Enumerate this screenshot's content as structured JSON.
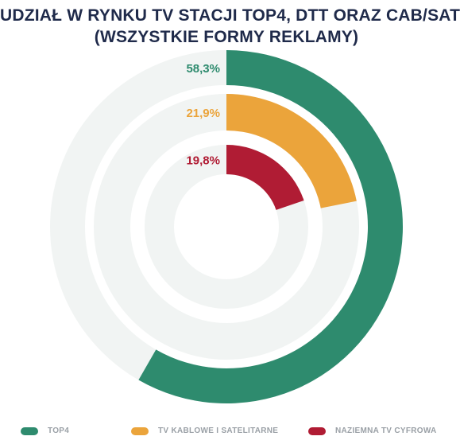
{
  "title_line1": "UDZIAŁ W RYNKU TV STACJI TOP4, DTT ORAZ CAB/SAT",
  "title_line2": "(WSZYSTKIE FORMY REKLAMY)",
  "chart_data": {
    "type": "pie",
    "variant": "concentric-radial-bars",
    "title": "UDZIAŁ W RYNKU TV STACJI TOP4, DTT ORAZ CAB/SAT (WSZYSTKIE FORMY REKLAMY)",
    "unit": "%",
    "series": [
      {
        "name": "TOP4",
        "value": 58.3,
        "label": "58,3%",
        "color": "#2e8b6e"
      },
      {
        "name": "TV KABLOWE I SATELITARNE",
        "value": 21.9,
        "label": "21,9%",
        "color": "#eba43b"
      },
      {
        "name": "NAZIEMNA TV CYFROWA",
        "value": 19.8,
        "label": "19,8%",
        "color": "#b01c34"
      }
    ],
    "track_color": "#f1f4f3",
    "legend": "bottom"
  }
}
